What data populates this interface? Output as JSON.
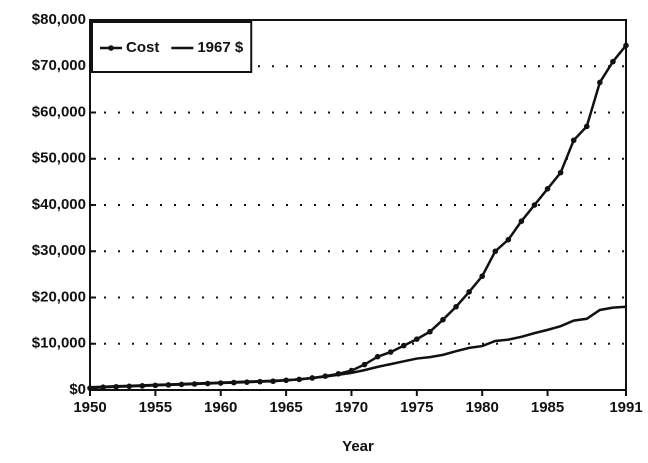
{
  "chart_data": {
    "type": "line",
    "x_label": "Year",
    "x": [
      1950,
      1951,
      1952,
      1953,
      1954,
      1955,
      1956,
      1957,
      1958,
      1959,
      1960,
      1961,
      1962,
      1963,
      1964,
      1965,
      1966,
      1967,
      1968,
      1969,
      1970,
      1971,
      1972,
      1973,
      1974,
      1975,
      1976,
      1977,
      1978,
      1979,
      1980,
      1981,
      1982,
      1983,
      1984,
      1985,
      1986,
      1987,
      1988,
      1989,
      1990,
      1991
    ],
    "series": [
      {
        "name": "Cost",
        "color": "#111111",
        "marker": true,
        "values": [
          400,
          600,
          700,
          800,
          900,
          1000,
          1100,
          1200,
          1300,
          1400,
          1500,
          1600,
          1700,
          1800,
          1900,
          2100,
          2300,
          2600,
          3000,
          3500,
          4200,
          5500,
          7200,
          8200,
          9600,
          11000,
          12600,
          15200,
          18000,
          21200,
          24600,
          30000,
          32500,
          36500,
          40000,
          43500,
          47000,
          54000,
          57000,
          66500,
          71000,
          74500
        ]
      },
      {
        "name": "1967 $",
        "color": "#111111",
        "marker": false,
        "values": [
          600,
          700,
          800,
          900,
          1000,
          1100,
          1200,
          1300,
          1400,
          1500,
          1600,
          1700,
          1800,
          1900,
          2000,
          2100,
          2300,
          2600,
          2900,
          3300,
          3700,
          4300,
          5000,
          5600,
          6200,
          6800,
          7100,
          7600,
          8400,
          9100,
          9500,
          10600,
          10900,
          11500,
          12300,
          13000,
          13800,
          15000,
          15400,
          17300,
          17800,
          18000
        ]
      }
    ],
    "xlim": [
      1950,
      1991
    ],
    "xticks": [
      1950,
      1955,
      1960,
      1965,
      1970,
      1975,
      1980,
      1985,
      1991
    ],
    "ylim": [
      0,
      80000
    ],
    "yticks": [
      {
        "value": 0,
        "label": "$0"
      },
      {
        "value": 10000,
        "label": "$10,000"
      },
      {
        "value": 20000,
        "label": "$20,000"
      },
      {
        "value": 30000,
        "label": "$30,000"
      },
      {
        "value": 40000,
        "label": "$40,000"
      },
      {
        "value": 50000,
        "label": "$50,000"
      },
      {
        "value": 60000,
        "label": "$60,000"
      },
      {
        "value": 70000,
        "label": "$70,000"
      },
      {
        "value": 80000,
        "label": "$80,000"
      }
    ],
    "grid": true,
    "legend": "top-left"
  }
}
